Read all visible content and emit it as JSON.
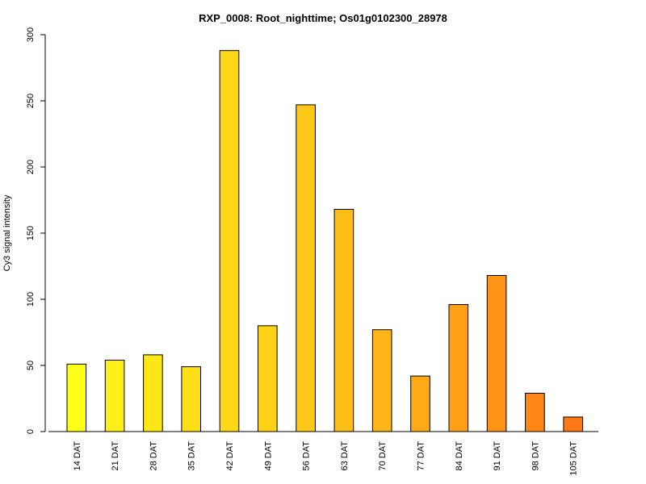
{
  "chart_data": {
    "type": "bar",
    "title": "RXP_0008: Root_nighttime; Os01g0102300_28978",
    "xlabel": "",
    "ylabel": "Cy3 signal intensity",
    "ylim": [
      0,
      300
    ],
    "yticks": [
      0,
      50,
      100,
      150,
      200,
      250,
      300
    ],
    "grid": false,
    "categories": [
      "14 DAT",
      "21 DAT",
      "28 DAT",
      "35 DAT",
      "42 DAT",
      "49 DAT",
      "56 DAT",
      "63 DAT",
      "70 DAT",
      "77 DAT",
      "84 DAT",
      "91 DAT",
      "98 DAT",
      "105 DAT"
    ],
    "values": [
      51,
      54,
      58,
      49,
      288,
      80,
      247,
      168,
      77,
      42,
      96,
      118,
      29,
      11
    ],
    "colors": [
      "#FFFF17",
      "#FFF017",
      "#FFE617",
      "#FFDF17",
      "#FFD817",
      "#FFD117",
      "#FFC717",
      "#FFBD17",
      "#FFB517",
      "#FFAB17",
      "#FFA017",
      "#FF9417",
      "#FF8717",
      "#FF7A17"
    ]
  }
}
